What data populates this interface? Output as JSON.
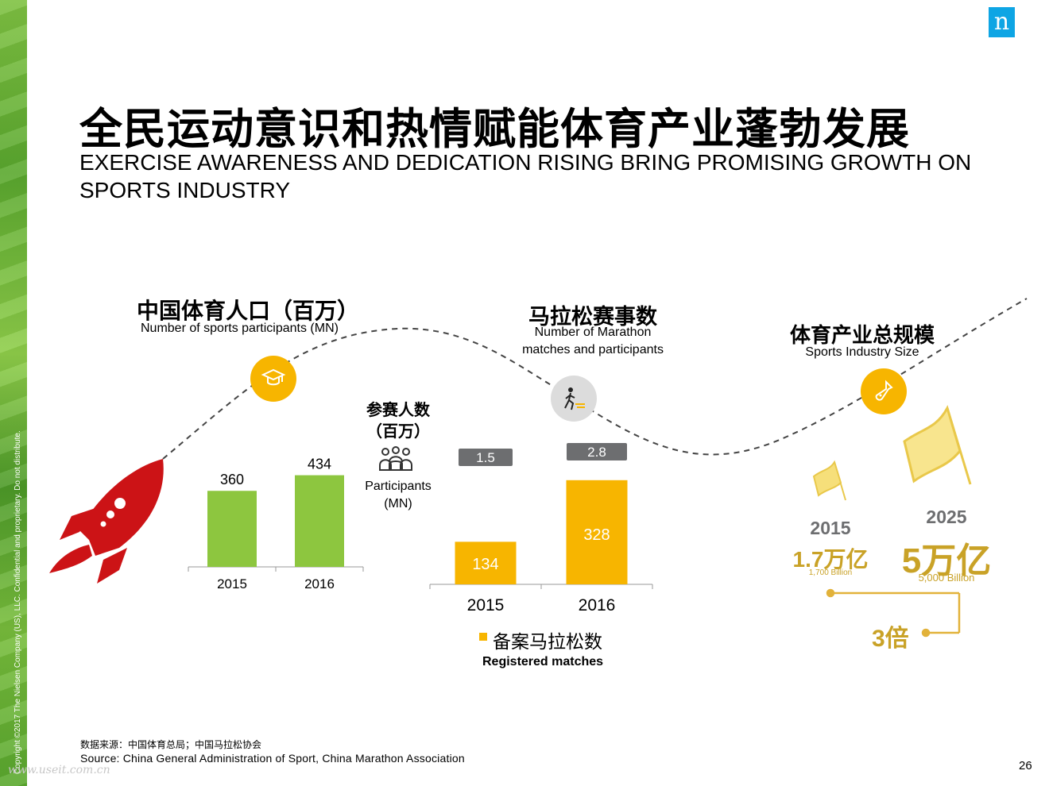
{
  "logo": "n",
  "title_cn": "全民运动意识和热情赋能体育产业蓬勃发展",
  "title_en": "EXERCISE AWARENESS AND DEDICATION RISING BRING PROMISING GROWTH ON SPORTS INDUSTRY",
  "copyright": "Copyright ©2017 The Nielsen Company (US), LLC. Confidential and proprietary. Do not distribute.",
  "watermark": "www.useit.com.cn",
  "page_number": "26",
  "sections": {
    "participants": {
      "title_cn": "中国体育人口（百万）",
      "title_en": "Number of sports participants (MN)"
    },
    "marathon": {
      "title_cn": "马拉松赛事数",
      "title_en_1": "Number of Marathon",
      "title_en_2": "matches and participants"
    },
    "industry": {
      "title_cn": "体育产业总规模",
      "title_en": "Sports Industry Size"
    }
  },
  "participants_label": {
    "cn_1": "参赛人数",
    "cn_2": "（百万）",
    "en_1": "Participants",
    "en_2": "(MN)"
  },
  "legend": {
    "cn": "备案马拉松数",
    "en": "Registered matches"
  },
  "industry_size": {
    "year_2015": "2015",
    "value_2015": "1.7万亿",
    "sub_2015": "1,700 Billion",
    "year_2025": "2025",
    "value_2025": "5万亿",
    "sub_2025": "5,000 Billion",
    "multiplier": "3倍"
  },
  "source": {
    "cn": "数据来源：中国体育总局；中国马拉松协会",
    "en": "Source: China General Administration of Sport, China Marathon Association"
  },
  "colors": {
    "green": "#8dc63f",
    "orange": "#f7b500",
    "gold": "#c9a227",
    "red": "#cc1316",
    "gray_label": "#6d6e70"
  },
  "chart_data": [
    {
      "type": "bar",
      "categories": [
        "2015",
        "2016"
      ],
      "values": [
        360,
        434
      ]
    },
    {
      "type": "bar",
      "categories": [
        "2015",
        "2016"
      ],
      "series": [
        {
          "name": "备案马拉松数",
          "values": [
            134,
            328
          ]
        },
        {
          "values": [
            1.5,
            2.8
          ]
        }
      ]
    }
  ]
}
